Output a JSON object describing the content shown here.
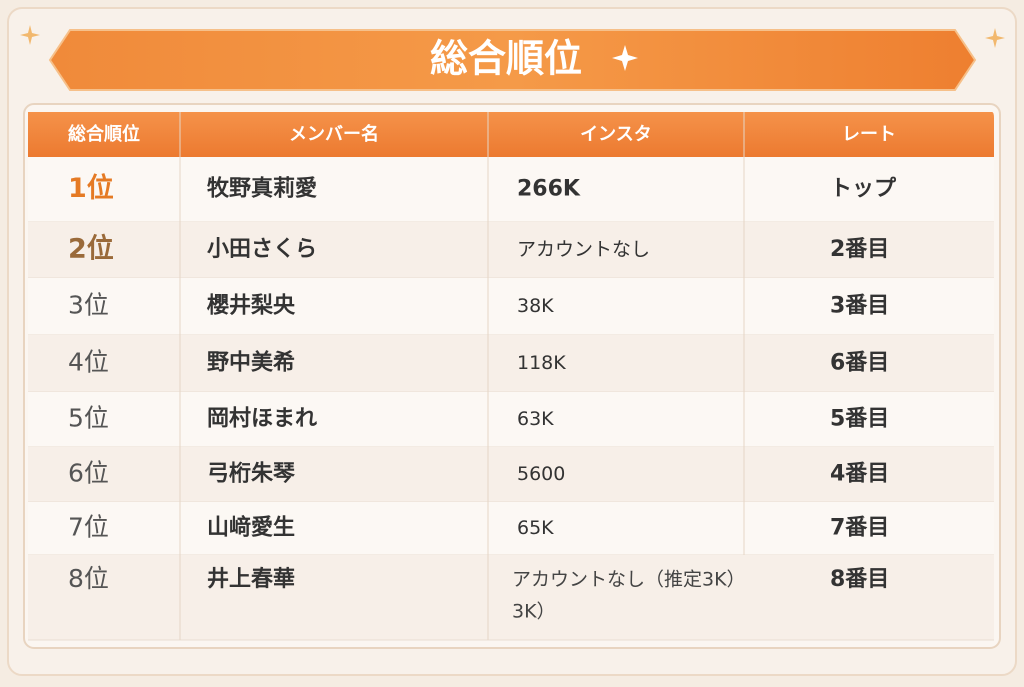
{
  "header": {
    "title": "総合順位"
  },
  "table": {
    "columns": [
      "総合順位",
      "メンバー名",
      "インスタ",
      "レート"
    ],
    "rows": [
      {
        "rank": "1位",
        "name": "牧野真莉愛",
        "insta": "266K",
        "rate": "トップ"
      },
      {
        "rank": "2位",
        "name": "小田さくら",
        "insta": "アカウントなし",
        "rate": "2番目"
      },
      {
        "rank": "3位",
        "name": "櫻井梨央",
        "insta": "38K",
        "rate": "3番目"
      },
      {
        "rank": "4位",
        "name": "野中美希",
        "insta": "118K",
        "rate": "6番目"
      },
      {
        "rank": "5位",
        "name": "岡村ほまれ",
        "insta": "63K",
        "rate": "5番目"
      },
      {
        "rank": "6位",
        "name": "弓桁朱琴",
        "insta": "5600",
        "rate": "4番目"
      },
      {
        "rank": "7位",
        "name": "山﨑愛生",
        "insta": "65K",
        "rate": "7番目"
      },
      {
        "rank": "8位",
        "name": "井上春華",
        "insta": [
          "アカウントなし（推定3K）",
          "3K）"
        ],
        "rate": "8番目"
      }
    ]
  }
}
